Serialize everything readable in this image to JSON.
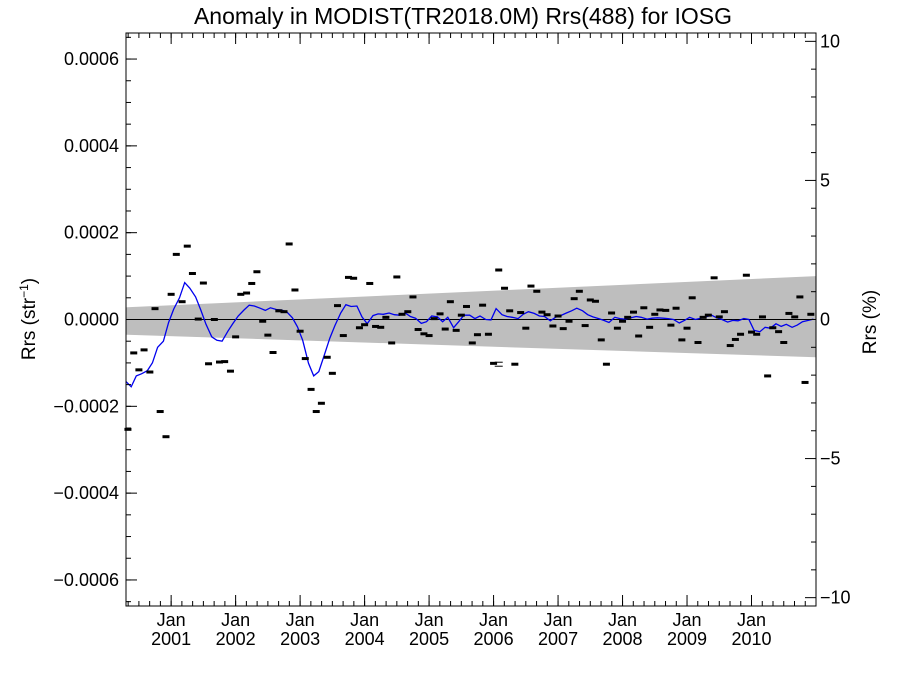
{
  "chart_data": {
    "type": "scatter",
    "title": "Anomaly in MODIST(TR2018.0M) Rrs(488) for IOSG",
    "ylabel_main": "Rrs (str",
    "ylabel_sup": "−1",
    "ylabel_close": ")",
    "y2label": "Rrs (%)",
    "xlim": [
      2000.3,
      2011.0
    ],
    "ylim": [
      -0.00066,
      0.00066
    ],
    "y2lim": [
      -10.3,
      10.3
    ],
    "y_ticks": [
      {
        "value": 0.0006,
        "label": "0.0006"
      },
      {
        "value": 0.0004,
        "label": "0.0004"
      },
      {
        "value": 0.0002,
        "label": "0.0002"
      },
      {
        "value": 0.0,
        "label": "0.0000"
      },
      {
        "value": -0.0002,
        "label": "−0.0002"
      },
      {
        "value": -0.0004,
        "label": "−0.0004"
      },
      {
        "value": -0.0006,
        "label": "−0.0006"
      }
    ],
    "y2_ticks": [
      {
        "value": 10,
        "label": "10"
      },
      {
        "value": 5,
        "label": "5"
      },
      {
        "value": 0,
        "label": "0"
      },
      {
        "value": -5,
        "label": "−5"
      },
      {
        "value": -10,
        "label": "−10"
      }
    ],
    "x_ticks": [
      {
        "value": 2001.0,
        "month": "Jan",
        "year": "2001"
      },
      {
        "value": 2002.0,
        "month": "Jan",
        "year": "2002"
      },
      {
        "value": 2003.0,
        "month": "Jan",
        "year": "2003"
      },
      {
        "value": 2004.0,
        "month": "Jan",
        "year": "2004"
      },
      {
        "value": 2005.0,
        "month": "Jan",
        "year": "2005"
      },
      {
        "value": 2006.0,
        "month": "Jan",
        "year": "2006"
      },
      {
        "value": 2007.0,
        "month": "Jan",
        "year": "2007"
      },
      {
        "value": 2008.0,
        "month": "Jan",
        "year": "2008"
      },
      {
        "value": 2009.0,
        "month": "Jan",
        "year": "2009"
      },
      {
        "value": 2010.0,
        "month": "Jan",
        "year": "2010"
      }
    ],
    "uncertainty_band": {
      "x": [
        2000.3,
        2011.0
      ],
      "upper": [
        2.8e-05,
        0.0001
      ],
      "lower": [
        -3.5e-05,
        -8.7e-05
      ],
      "color": "#bebebe"
    },
    "zero_line": {
      "value": 0.0,
      "color": "#000000"
    },
    "series": [
      {
        "kind": "monthly-marker",
        "color": "#000000",
        "x": [
          2000.33,
          2000.42,
          2000.5,
          2000.58,
          2000.67,
          2000.75,
          2000.83,
          2000.92,
          2001.0,
          2001.08,
          2001.17,
          2001.25,
          2001.33,
          2001.42,
          2001.5,
          2001.58,
          2001.67,
          2001.75,
          2001.83,
          2001.92,
          2002.0,
          2002.08,
          2002.17,
          2002.25,
          2002.33,
          2002.42,
          2002.5,
          2002.58,
          2002.67,
          2002.75,
          2002.83,
          2002.92,
          2003.0,
          2003.08,
          2003.17,
          2003.25,
          2003.33,
          2003.42,
          2003.5,
          2003.58,
          2003.67,
          2003.75,
          2003.83,
          2003.92,
          2004.0,
          2004.08,
          2004.17,
          2004.25,
          2004.33,
          2004.42,
          2004.5,
          2004.58,
          2004.67,
          2004.75,
          2004.83,
          2004.92,
          2005.0,
          2005.08,
          2005.17,
          2005.25,
          2005.33,
          2005.42,
          2005.5,
          2005.58,
          2005.67,
          2005.75,
          2005.83,
          2005.92,
          2006.0,
          2006.08,
          2006.17,
          2006.25,
          2006.33,
          2006.42,
          2006.5,
          2006.58,
          2006.67,
          2006.75,
          2006.83,
          2006.92,
          2007.0,
          2007.08,
          2007.17,
          2007.25,
          2007.33,
          2007.42,
          2007.5,
          2007.58,
          2007.67,
          2007.75,
          2007.83,
          2007.92,
          2008.0,
          2008.08,
          2008.17,
          2008.25,
          2008.33,
          2008.42,
          2008.5,
          2008.58,
          2008.67,
          2008.75,
          2008.83,
          2008.92,
          2009.0,
          2009.08,
          2009.17,
          2009.25,
          2009.33,
          2009.42,
          2009.5,
          2009.58,
          2009.67,
          2009.75,
          2009.83,
          2009.92,
          2010.0,
          2010.08,
          2010.17,
          2010.25,
          2010.33,
          2010.42,
          2010.5,
          2010.58,
          2010.67,
          2010.75,
          2010.83,
          2010.92
        ],
        "y": [
          -0.000253,
          -7.7e-05,
          -0.000116,
          -7e-05,
          -0.000121,
          2.5e-05,
          -0.000212,
          -0.00027,
          5.8e-05,
          0.00015,
          4.1e-05,
          0.000169,
          0.000106,
          1e-06,
          8.4e-05,
          -0.000102,
          -0.0,
          -9.8e-05,
          -9.7e-05,
          -0.000119,
          -4e-05,
          5.8e-05,
          6.1e-05,
          8.3e-05,
          0.00011,
          -4e-06,
          -3.6e-05,
          -7.6e-05,
          2e-05,
          1.8e-05,
          0.000174,
          6.8e-05,
          -2.7e-05,
          -9e-05,
          -0.000161,
          -0.000212,
          -0.000193,
          -8.7e-05,
          -0.000124,
          3.2e-05,
          -3.7e-05,
          9.7e-05,
          9.5e-05,
          -1.9e-05,
          -1.2e-05,
          8.3e-05,
          -1.6e-05,
          -1.8e-05,
          5e-06,
          -5.4e-05,
          9.8e-05,
          1.2e-05,
          1.8e-05,
          5.2e-05,
          -2.3e-05,
          -3.3e-05,
          -3.7e-05,
          2e-06,
          1.3e-05,
          -2.2e-05,
          4.1e-05,
          -2.5e-05,
          1e-05,
          3e-05,
          -5.4e-05,
          -3.5e-05,
          3.3e-05,
          -3.4e-05,
          -0.000101,
          0.000114,
          7.2e-05,
          2e-05,
          -0.000103,
          1.6e-05,
          -2e-05,
          7.7e-05,
          6.5e-05,
          1.7e-05,
          1.1e-05,
          -1.5e-05,
          8e-06,
          -2.1e-05,
          -4e-06,
          4.8e-05,
          6.5e-05,
          -1.4e-05,
          4.5e-05,
          4.2e-05,
          -4.7e-05,
          -0.000103,
          1.5e-05,
          -2e-05,
          -4e-06,
          5e-06,
          1.7e-05,
          -3.8e-05,
          2.7e-05,
          -1.8e-05,
          1.2e-05,
          2.2e-05,
          2.1e-05,
          -1.3e-05,
          2.6e-05,
          -4.7e-05,
          -2e-05,
          5e-05,
          -5.3e-05,
          5e-06,
          1e-05,
          9.6e-05,
          6e-06,
          1.8e-05,
          -6e-05,
          -4.6e-05,
          -3.4e-05,
          0.000102,
          -2.9e-05,
          -3.4e-05,
          6e-06,
          -0.00013,
          -1.9e-05,
          -2.8e-05,
          -5.3e-05,
          1.4e-05,
          6e-06,
          5.2e-05,
          -0.000145,
          1.2e-05
        ],
        "error_bar_x": 2006.08,
        "error_bar_y": -0.000103
      },
      {
        "kind": "running-mean",
        "color": "#0000ee",
        "x": [
          2000.3,
          2000.38,
          2000.46,
          2000.54,
          2000.63,
          2000.71,
          2000.79,
          2000.88,
          2000.96,
          2001.04,
          2001.13,
          2001.21,
          2001.29,
          2001.38,
          2001.46,
          2001.54,
          2001.63,
          2001.71,
          2001.79,
          2001.88,
          2001.96,
          2002.04,
          2002.13,
          2002.21,
          2002.29,
          2002.38,
          2002.46,
          2002.54,
          2002.63,
          2002.71,
          2002.79,
          2002.88,
          2002.96,
          2003.04,
          2003.13,
          2003.21,
          2003.29,
          2003.38,
          2003.46,
          2003.54,
          2003.63,
          2003.71,
          2003.79,
          2003.88,
          2003.96,
          2004.04,
          2004.13,
          2004.21,
          2004.29,
          2004.38,
          2004.46,
          2004.54,
          2004.63,
          2004.71,
          2004.79,
          2004.88,
          2004.96,
          2005.04,
          2005.13,
          2005.21,
          2005.29,
          2005.38,
          2005.46,
          2005.54,
          2005.63,
          2005.71,
          2005.79,
          2005.88,
          2005.96,
          2006.04,
          2006.13,
          2006.21,
          2006.29,
          2006.38,
          2006.46,
          2006.54,
          2006.63,
          2006.71,
          2006.79,
          2006.88,
          2006.96,
          2007.04,
          2007.13,
          2007.21,
          2007.29,
          2007.38,
          2007.46,
          2007.54,
          2007.63,
          2007.71,
          2007.79,
          2007.88,
          2007.96,
          2008.04,
          2008.13,
          2008.21,
          2008.29,
          2008.38,
          2008.46,
          2008.54,
          2008.63,
          2008.71,
          2008.79,
          2008.88,
          2008.96,
          2009.04,
          2009.13,
          2009.21,
          2009.29,
          2009.38,
          2009.46,
          2009.54,
          2009.63,
          2009.71,
          2009.79,
          2009.88,
          2009.96,
          2010.04,
          2010.13,
          2010.21,
          2010.29,
          2010.38,
          2010.46,
          2010.54,
          2010.63,
          2010.71,
          2010.79,
          2010.88,
          2010.96
        ],
        "y": [
          -0.000143,
          -0.000155,
          -0.00013,
          -0.000125,
          -0.000118,
          -0.0001,
          -6.4e-05,
          -5e-05,
          -7e-06,
          2.4e-05,
          5e-05,
          8.5e-05,
          7.2e-05,
          5.2e-05,
          2.2e-05,
          -1.1e-05,
          -4e-05,
          -4.8e-05,
          -5e-05,
          -2.7e-05,
          -9e-06,
          8e-06,
          2.2e-05,
          3.3e-05,
          3.1e-05,
          2.6e-05,
          2.1e-05,
          2.7e-05,
          2.3e-05,
          2.2e-05,
          1.8e-05,
          4e-06,
          -1.7e-05,
          -4.8e-05,
          -0.000101,
          -0.00013,
          -0.00012,
          -8e-05,
          -4.3e-05,
          -1.4e-05,
          1.5e-05,
          3.4e-05,
          3e-05,
          3.1e-05,
          6e-06,
          -1e-05,
          9e-06,
          1.3e-05,
          1.2e-05,
          1.5e-05,
          1.1e-05,
          1e-05,
          1.5e-05,
          7e-06,
          3e-06,
          -9e-06,
          -5e-06,
          8e-06,
          6e-06,
          -5e-06,
          5e-06,
          -1.9e-05,
          -5e-06,
          1e-05,
          1e-05,
          2e-06,
          8e-06,
          0.0,
          -1e-06,
          2.5e-05,
          1.1e-05,
          7e-06,
          5e-06,
          2e-06,
          1.2e-05,
          1.8e-05,
          1.4e-05,
          8e-06,
          7e-06,
          -3e-06,
          5e-06,
          9e-06,
          1.5e-05,
          2e-05,
          2.6e-05,
          2e-05,
          1.1e-05,
          6e-06,
          2e-06,
          -2e-06,
          -7e-06,
          5e-06,
          2e-06,
          1e-06,
          4e-06,
          7e-06,
          5e-06,
          1e-06,
          3e-06,
          4e-06,
          3e-06,
          2e-06,
          0.0,
          -8e-06,
          -2e-06,
          5e-06,
          0.0,
          3e-06,
          6e-06,
          1e-05,
          4e-06,
          0.0,
          -6e-06,
          -2e-06,
          -3e-06,
          2e-06,
          0.0,
          -2.5e-05,
          -2.8e-05,
          -1.8e-05,
          -2e-05,
          -1e-05,
          -1.6e-05,
          -1.1e-05,
          -1.8e-05,
          -1.3e-05,
          -5e-06,
          -2e-06,
          1e-06
        ]
      }
    ]
  }
}
